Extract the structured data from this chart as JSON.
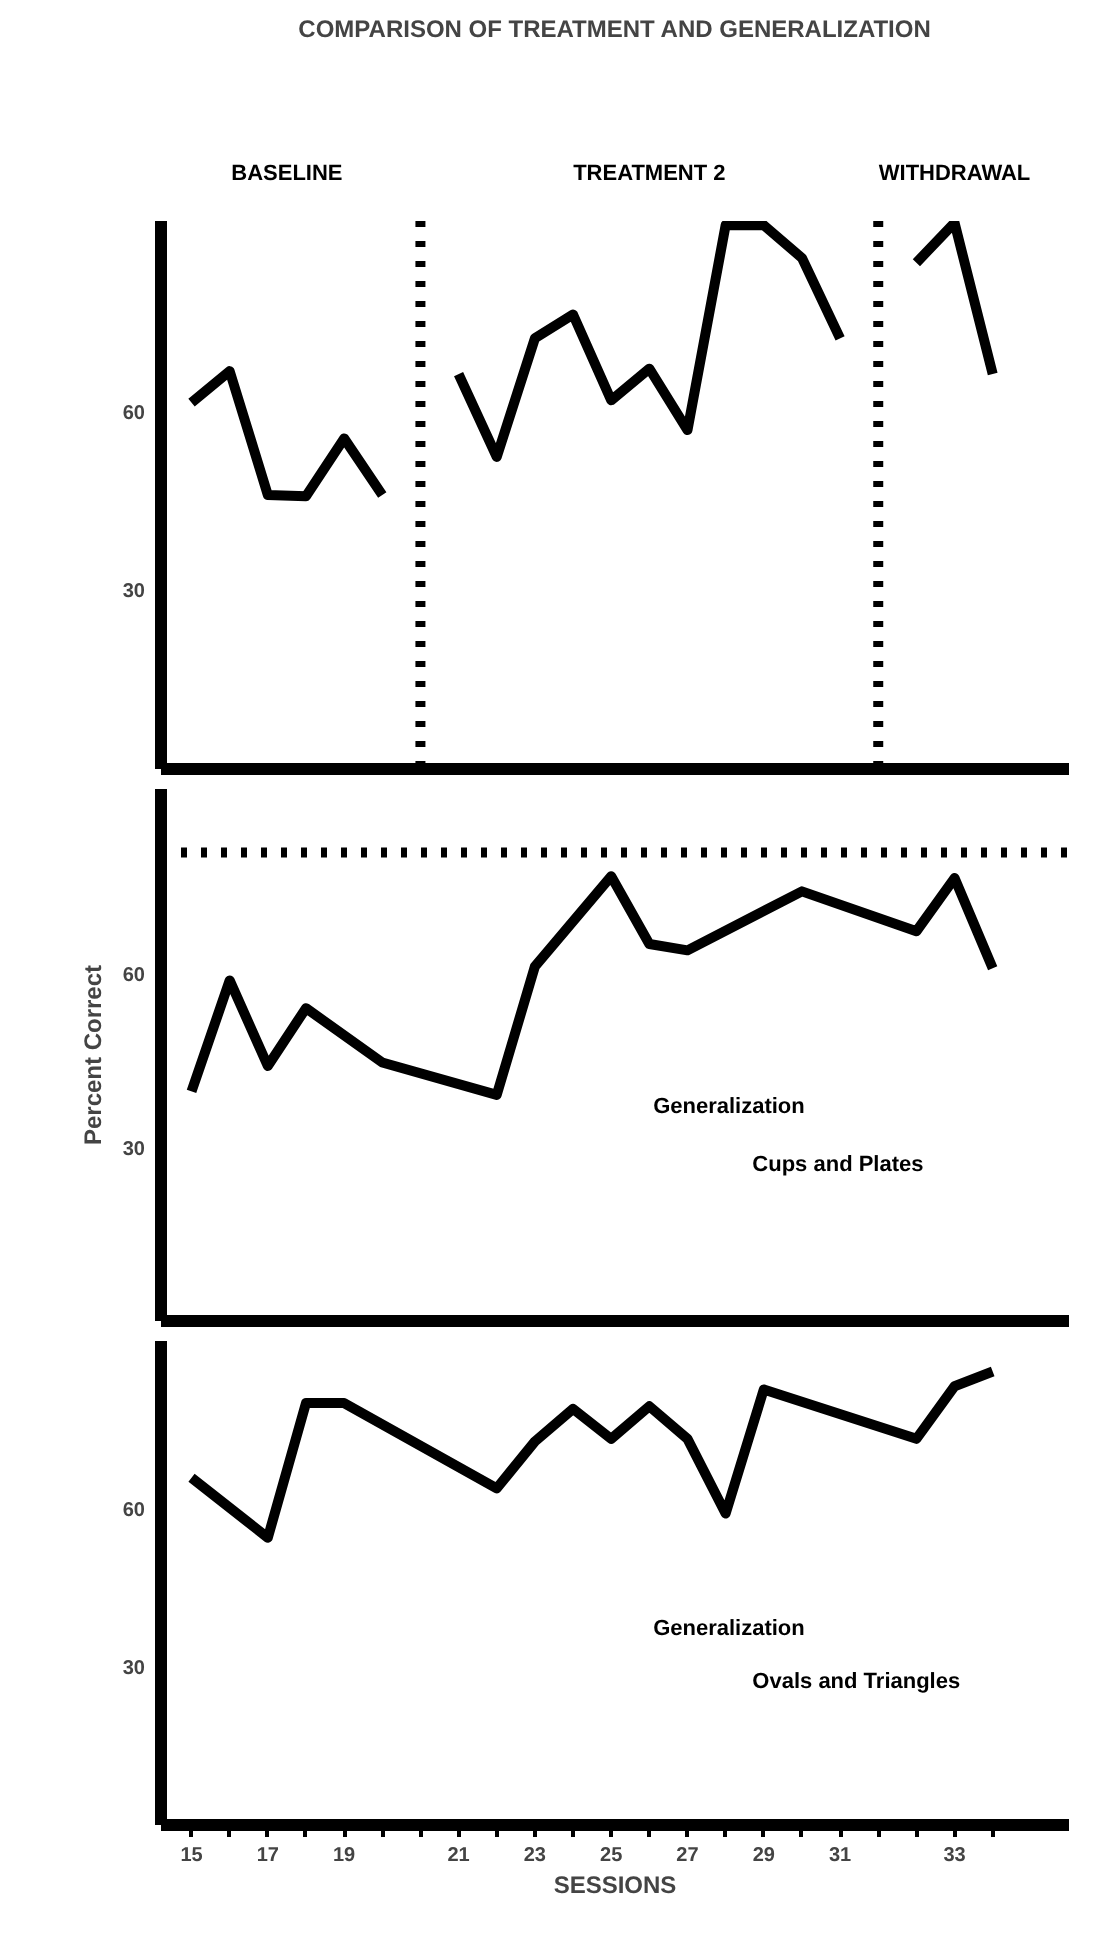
{
  "chart_data": [
    {
      "type": "line",
      "title": "COMPARISON OF TREATMENT AND GENERALIZATION",
      "categories": [
        "15",
        null,
        "17",
        null,
        "19",
        null,
        null,
        "21",
        null,
        "23",
        null,
        "25",
        null,
        "27",
        null,
        "29",
        null,
        "31",
        null,
        null,
        "33",
        null
      ],
      "ylim": [
        0,
        92
      ],
      "yticks": [
        30,
        60
      ],
      "tick_labels": "y",
      "annotations": [
        "BASELINE",
        "TREATMENT 2",
        "WITHDRAWAL"
      ],
      "line_style": "solid",
      "marker": "none",
      "series": [
        {
          "color": "#000000",
          "values": [
            61.5,
            66.8,
            46,
            45.8,
            55.5,
            46,
            null,
            null,
            null,
            null,
            null,
            null,
            null,
            null,
            null,
            null,
            null,
            null,
            null,
            null,
            null,
            null
          ]
        },
        {
          "color": "#000000",
          "values": [
            null,
            null,
            null,
            null,
            null,
            null,
            null,
            66.3,
            52.4,
            72.3,
            76.3,
            61.9,
            67.2,
            56.9,
            91.3,
            91.3,
            85.8,
            72.3,
            null,
            null,
            null,
            null
          ]
        },
        {
          "color": "#000000",
          "values": [
            null,
            null,
            null,
            null,
            null,
            null,
            null,
            null,
            null,
            null,
            null,
            null,
            null,
            null,
            null,
            null,
            null,
            null,
            null,
            85,
            91.7,
            66.3
          ]
        }
      ]
    },
    {
      "type": "line",
      "ylabel": "Percent Correct",
      "categories": [
        "15",
        null,
        "17",
        null,
        "19",
        null,
        null,
        "21",
        null,
        "23",
        null,
        "25",
        null,
        "27",
        null,
        "29",
        null,
        "31",
        null,
        null,
        "33",
        null
      ],
      "ylim": [
        0,
        92
      ],
      "yticks": [
        30,
        60
      ],
      "tick_labels": "y",
      "annotations": [
        "Generalization",
        "Cups and Plates"
      ],
      "line_style": "solid",
      "marker": "none",
      "series": [
        {
          "color": "#000000",
          "values": [
            39.7,
            58.9,
            44.1,
            54.1,
            null,
            44.7,
            null,
            null,
            39.1,
            61.3,
            null,
            76.9,
            65.2,
            64.1,
            null,
            null,
            74.3,
            null,
            null,
            67.4,
            76.6,
            61
          ]
        }
      ],
      "ref_lines": [
        {
          "axis": "y",
          "value": 81,
          "line_style": "dotted",
          "color": "#000000"
        }
      ]
    },
    {
      "type": "line",
      "xlabel": "SESSIONS",
      "categories": [
        "15",
        null,
        "17",
        null,
        "19",
        null,
        null,
        "21",
        null,
        "23",
        null,
        "25",
        null,
        "27",
        null,
        "29",
        null,
        "31",
        null,
        null,
        "33",
        null
      ],
      "ylim": [
        0,
        92
      ],
      "yticks": [
        30,
        60
      ],
      "annotations": [
        "Generalization",
        "Ovals and Triangles"
      ],
      "line_style": "solid",
      "marker": "none",
      "series": [
        {
          "color": "#000000",
          "values": [
            66,
            null,
            54.6,
            80.2,
            80.2,
            null,
            null,
            null,
            64,
            72.9,
            79.1,
            73.4,
            79.6,
            73.4,
            59.2,
            82.8,
            null,
            null,
            null,
            73.4,
            83.4,
            86.2
          ]
        }
      ]
    }
  ]
}
